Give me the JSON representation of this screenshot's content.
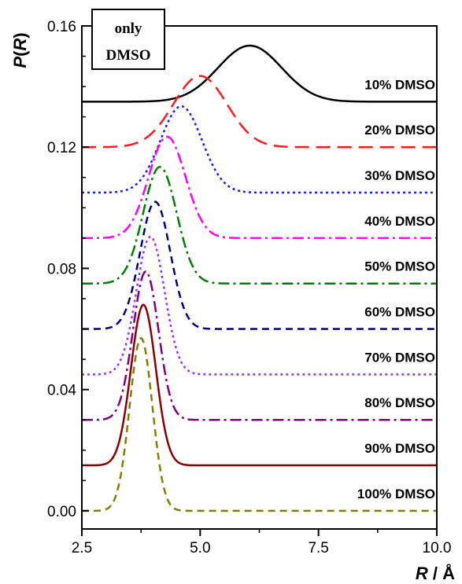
{
  "chart_data": {
    "type": "line",
    "xlabel": "R / Å",
    "ylabel": "P(R)",
    "xlim": [
      2.5,
      10.0
    ],
    "ylim": [
      -0.006,
      0.16
    ],
    "x_ticks": [
      2.5,
      5.0,
      7.5,
      10.0
    ],
    "x_tick_labels": [
      "2.5",
      "5.0",
      "7.5",
      "10.0"
    ],
    "y_ticks": [
      0.0,
      0.04,
      0.08,
      0.12,
      0.16
    ],
    "y_tick_labels": [
      "0.00",
      "0.04",
      "0.08",
      "0.12",
      "0.16"
    ],
    "grid": false,
    "legend_box": {
      "line1": "only",
      "line2": "DMSO",
      "placement": "top-left"
    },
    "series": [
      {
        "name": "10% DMSO",
        "baseline": 0.135,
        "peak_x": 6.05,
        "peak_y": 0.1535,
        "width": 0.95,
        "color": "#000000",
        "dash": "solid"
      },
      {
        "name": "20% DMSO",
        "baseline": 0.12,
        "peak_x": 5.0,
        "peak_y": 0.1435,
        "width": 0.8,
        "color": "#ff1a1a",
        "dash": "long-dash"
      },
      {
        "name": "30% DMSO",
        "baseline": 0.105,
        "peak_x": 4.6,
        "peak_y": 0.1335,
        "width": 0.62,
        "color": "#1a1aff",
        "dash": "dot"
      },
      {
        "name": "40% DMSO",
        "baseline": 0.09,
        "peak_x": 4.3,
        "peak_y": 0.1235,
        "width": 0.55,
        "color": "#ff00ff",
        "dash": "dash-dot"
      },
      {
        "name": "50% DMSO",
        "baseline": 0.075,
        "peak_x": 4.15,
        "peak_y": 0.1135,
        "width": 0.5,
        "color": "#008000",
        "dash": "dash-dot"
      },
      {
        "name": "60% DMSO",
        "baseline": 0.06,
        "peak_x": 4.05,
        "peak_y": 0.102,
        "width": 0.45,
        "color": "#000080",
        "dash": "dash"
      },
      {
        "name": "70% DMSO",
        "baseline": 0.045,
        "peak_x": 3.95,
        "peak_y": 0.0905,
        "width": 0.42,
        "color": "#9b30ff",
        "dash": "dot"
      },
      {
        "name": "80% DMSO",
        "baseline": 0.03,
        "peak_x": 3.85,
        "peak_y": 0.079,
        "width": 0.38,
        "color": "#800080",
        "dash": "dash-dot"
      },
      {
        "name": "90% DMSO",
        "baseline": 0.015,
        "peak_x": 3.8,
        "peak_y": 0.068,
        "width": 0.37,
        "color": "#8b0000",
        "dash": "solid"
      },
      {
        "name": "100% DMSO",
        "baseline": 0.0,
        "peak_x": 3.75,
        "peak_y": 0.057,
        "width": 0.34,
        "color": "#808000",
        "dash": "dash"
      }
    ]
  }
}
